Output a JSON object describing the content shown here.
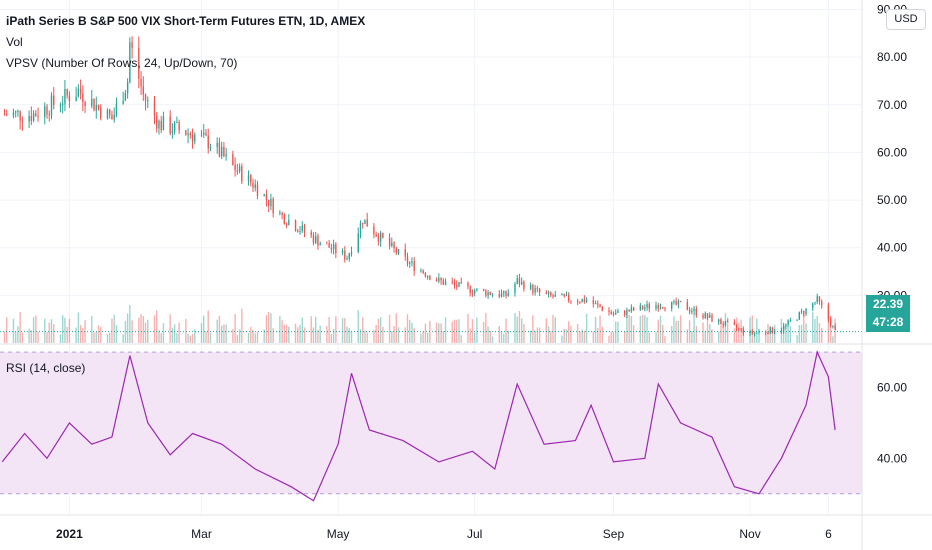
{
  "legend": {
    "title": "iPath Series B S&P 500 VIX Short-Term Futures ETN, 1D, AMEX",
    "vol": "Vol",
    "vpsv": "VPSV (Number Of Rows, 24, Up/Down, 70)",
    "rsi": "RSI (14, close)"
  },
  "currency": "USD",
  "price_tag": {
    "last": "22.39",
    "countdown": "47:28"
  },
  "colors": {
    "up": "#26a69a",
    "down": "#ef5350",
    "rsi_line": "#9c27b0",
    "rsi_band": "#f3e5f5",
    "last_line": "#26a69a"
  },
  "chart_data": [
    {
      "type": "candlestick",
      "title": "iPath Series B S&P 500 VIX Short-Term Futures ETN, 1D, AMEX",
      "y_ticks": [
        "90.00",
        "80.00",
        "70.00",
        "60.00",
        "50.00",
        "40.00",
        "30.00"
      ],
      "ylim": [
        20,
        92
      ],
      "x_ticks": [
        "2021",
        "Mar",
        "May",
        "Jul",
        "Sep",
        "Nov",
        "6"
      ],
      "last_price": 22.39,
      "close_anchors": [
        {
          "x": "2020-12-16",
          "close": 68
        },
        {
          "x": "2021-01-05",
          "close": 73
        },
        {
          "x": "2021-01-20",
          "close": 67
        },
        {
          "x": "2021-01-27",
          "close": 75
        },
        {
          "x": "2021-01-28",
          "close": 83
        },
        {
          "x": "2021-02-03",
          "close": 72
        },
        {
          "x": "2021-02-10",
          "close": 66
        },
        {
          "x": "2021-02-24",
          "close": 64
        },
        {
          "x": "2021-03-05",
          "close": 62
        },
        {
          "x": "2021-03-15",
          "close": 57
        },
        {
          "x": "2021-03-25",
          "close": 53
        },
        {
          "x": "2021-04-05",
          "close": 47
        },
        {
          "x": "2021-04-20",
          "close": 42
        },
        {
          "x": "2021-05-05",
          "close": 38
        },
        {
          "x": "2021-05-12",
          "close": 46
        },
        {
          "x": "2021-05-20",
          "close": 42
        },
        {
          "x": "2021-06-01",
          "close": 37
        },
        {
          "x": "2021-06-15",
          "close": 33
        },
        {
          "x": "2021-07-01",
          "close": 31
        },
        {
          "x": "2021-07-15",
          "close": 30
        },
        {
          "x": "2021-07-20",
          "close": 33
        },
        {
          "x": "2021-08-01",
          "close": 30
        },
        {
          "x": "2021-08-16",
          "close": 29
        },
        {
          "x": "2021-08-20",
          "close": 29
        },
        {
          "x": "2021-09-01",
          "close": 26
        },
        {
          "x": "2021-09-20",
          "close": 28
        },
        {
          "x": "2021-10-01",
          "close": 28
        },
        {
          "x": "2021-10-15",
          "close": 25
        },
        {
          "x": "2021-11-01",
          "close": 22
        },
        {
          "x": "2021-11-15",
          "close": 23
        },
        {
          "x": "2021-11-26",
          "close": 27
        },
        {
          "x": "2021-12-01",
          "close": 29
        },
        {
          "x": "2021-12-06",
          "close": 25
        },
        {
          "x": "2021-12-09",
          "close": 22.39
        }
      ],
      "volume": {
        "series_name": "Vol"
      }
    },
    {
      "type": "line",
      "title": "RSI (14, close)",
      "y_ticks": [
        "60.00",
        "40.00"
      ],
      "ylim": [
        24,
        72
      ],
      "bands": [
        30,
        70
      ],
      "x": [
        "2020-12-02",
        "2020-12-12",
        "2020-12-22",
        "2021-01-01",
        "2021-01-11",
        "2021-01-20",
        "2021-01-28",
        "2021-02-05",
        "2021-02-15",
        "2021-02-25",
        "2021-03-10",
        "2021-03-25",
        "2021-04-10",
        "2021-04-20",
        "2021-05-01",
        "2021-05-07",
        "2021-05-15",
        "2021-05-30",
        "2021-06-15",
        "2021-06-30",
        "2021-07-10",
        "2021-07-20",
        "2021-08-01",
        "2021-08-15",
        "2021-08-22",
        "2021-09-01",
        "2021-09-15",
        "2021-09-21",
        "2021-10-01",
        "2021-10-15",
        "2021-10-25",
        "2021-11-05",
        "2021-11-15",
        "2021-11-26",
        "2021-12-01",
        "2021-12-06",
        "2021-12-09"
      ],
      "values": [
        39,
        47,
        40,
        50,
        44,
        46,
        69,
        50,
        41,
        47,
        44,
        37,
        32,
        28,
        44,
        64,
        48,
        45,
        39,
        42,
        37,
        61,
        44,
        45,
        55,
        39,
        40,
        61,
        50,
        46,
        32,
        30,
        40,
        55,
        70,
        63,
        48
      ]
    }
  ]
}
